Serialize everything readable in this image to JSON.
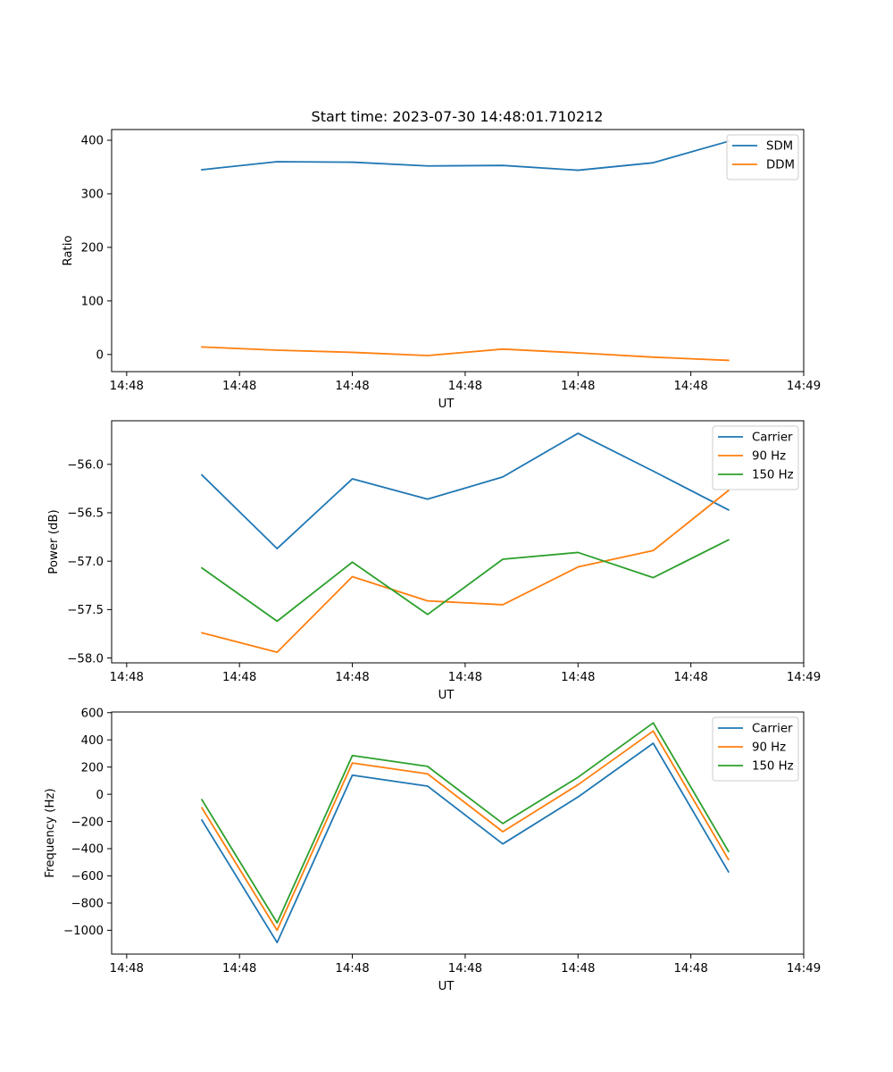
{
  "figure": {
    "title": "Start time: 2023-07-30 14:48:01.710212"
  },
  "colors": {
    "blue": "#1f77b4",
    "orange": "#ff7f0e",
    "green": "#2ca02c"
  },
  "chart_data": [
    {
      "type": "line",
      "title": "Start time: 2023-07-30 14:48:01.710212",
      "xlabel": "UT",
      "ylabel": "Ratio",
      "x": [
        1,
        2,
        3,
        4,
        5,
        6,
        7,
        8
      ],
      "xlim": [
        -0.2,
        9.0
      ],
      "x_ticks": [
        0,
        1.5,
        3.0,
        4.5,
        6.0,
        7.5,
        9.0
      ],
      "x_tick_labels": [
        "14:48",
        "14:48",
        "14:48",
        "14:48",
        "14:48",
        "14:48",
        "14:49"
      ],
      "ylim": [
        -32,
        420
      ],
      "y_ticks": [
        0,
        100,
        200,
        300,
        400
      ],
      "y_tick_labels": [
        "0",
        "100",
        "200",
        "300",
        "400"
      ],
      "legend_position": "upper-right",
      "series": [
        {
          "name": "SDM",
          "color": "#1f77b4",
          "values": [
            345,
            360,
            359,
            352,
            353,
            344,
            358,
            398
          ]
        },
        {
          "name": "DDM",
          "color": "#ff7f0e",
          "values": [
            14,
            8,
            4,
            -2,
            10,
            3,
            -5,
            -11
          ]
        }
      ]
    },
    {
      "type": "line",
      "title": "",
      "xlabel": "UT",
      "ylabel": "Power (dB)",
      "x": [
        1,
        2,
        3,
        4,
        5,
        6,
        7,
        8
      ],
      "xlim": [
        -0.2,
        9.0
      ],
      "x_ticks": [
        0,
        1.5,
        3.0,
        4.5,
        6.0,
        7.5,
        9.0
      ],
      "x_tick_labels": [
        "14:48",
        "14:48",
        "14:48",
        "14:48",
        "14:48",
        "14:48",
        "14:49"
      ],
      "ylim": [
        -58.05,
        -55.55
      ],
      "y_ticks": [
        -58.0,
        -57.5,
        -57.0,
        -56.5,
        -56.0
      ],
      "y_tick_labels": [
        "−58.0",
        "−57.5",
        "−57.0",
        "−56.5",
        "−56.0"
      ],
      "legend_position": "upper-right",
      "series": [
        {
          "name": "Carrier",
          "color": "#1f77b4",
          "values": [
            -56.11,
            -56.87,
            -56.15,
            -56.36,
            -56.13,
            -55.68,
            -56.07,
            -56.47
          ]
        },
        {
          "name": "90 Hz",
          "color": "#ff7f0e",
          "values": [
            -57.74,
            -57.94,
            -57.16,
            -57.41,
            -57.45,
            -57.06,
            -56.89,
            -56.27
          ]
        },
        {
          "name": "150 Hz",
          "color": "#2ca02c",
          "values": [
            -57.07,
            -57.62,
            -57.01,
            -57.55,
            -56.98,
            -56.91,
            -57.17,
            -56.78
          ]
        }
      ]
    },
    {
      "type": "line",
      "title": "",
      "xlabel": "UT",
      "ylabel": "Frequency (Hz)",
      "x": [
        1,
        2,
        3,
        4,
        5,
        6,
        7,
        8
      ],
      "xlim": [
        -0.2,
        9.0
      ],
      "x_ticks": [
        0,
        1.5,
        3.0,
        4.5,
        6.0,
        7.5,
        9.0
      ],
      "x_tick_labels": [
        "14:48",
        "14:48",
        "14:48",
        "14:48",
        "14:48",
        "14:48",
        "14:49"
      ],
      "ylim": [
        -1175,
        605
      ],
      "y_ticks": [
        -1000,
        -800,
        -600,
        -400,
        -200,
        0,
        200,
        400,
        600
      ],
      "y_tick_labels": [
        "−1000",
        "−800",
        "−600",
        "−400",
        "−200",
        "0",
        "200",
        "400",
        "600"
      ],
      "legend_position": "upper-right",
      "series": [
        {
          "name": "Carrier",
          "color": "#1f77b4",
          "values": [
            -190,
            -1090,
            140,
            60,
            -365,
            -20,
            375,
            -570
          ]
        },
        {
          "name": "90 Hz",
          "color": "#ff7f0e",
          "values": [
            -100,
            -1000,
            230,
            150,
            -275,
            70,
            465,
            -480
          ]
        },
        {
          "name": "150 Hz",
          "color": "#2ca02c",
          "values": [
            -40,
            -945,
            285,
            205,
            -215,
            125,
            525,
            -420
          ]
        }
      ]
    }
  ]
}
